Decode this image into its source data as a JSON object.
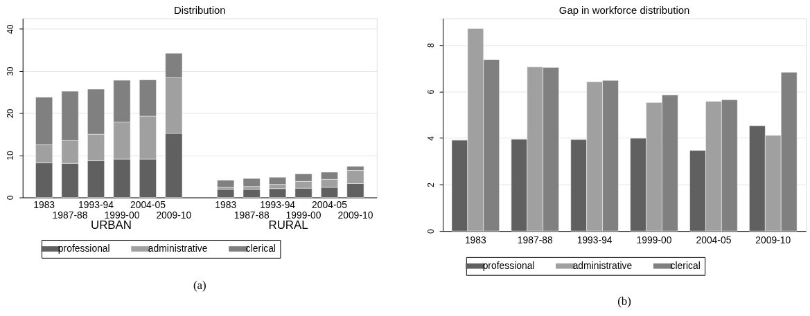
{
  "chart_data": [
    {
      "type": "bar",
      "title": "Distribution",
      "stacked": true,
      "categories": [
        "1983",
        "1987-88",
        "1993-94",
        "1999-00",
        "2004-05",
        "2009-10",
        null,
        "1983",
        "1987-88",
        "1993-94",
        "1999-00",
        "2004-05",
        "2009-10"
      ],
      "series": [
        {
          "name": "professional",
          "color": "#606060",
          "values": [
            8.2,
            8.1,
            8.7,
            9.1,
            9.1,
            15.2,
            null,
            1.9,
            1.9,
            2.1,
            2.2,
            2.4,
            3.3
          ]
        },
        {
          "name": "administrative",
          "color": "#a0a0a0",
          "values": [
            4.3,
            5.4,
            6.3,
            8.8,
            10.2,
            13.2,
            null,
            0.5,
            0.7,
            1.0,
            1.6,
            1.9,
            3.1
          ]
        },
        {
          "name": "clerical",
          "color": "#808080",
          "values": [
            11.3,
            11.7,
            10.7,
            9.9,
            8.6,
            5.8,
            null,
            1.7,
            1.9,
            1.7,
            1.8,
            1.7,
            1.0
          ]
        }
      ],
      "ylim": [
        0,
        42.5
      ],
      "yticks": [
        0,
        10,
        20,
        30,
        40
      ],
      "grid": "y",
      "legend": "bottom",
      "annotations": [
        "URBAN",
        "RURAL",
        "(a)"
      ]
    },
    {
      "type": "bar",
      "title": "Gap in workforce distribution",
      "categories": [
        "1983",
        "1987-88",
        "1993-94",
        "1999-00",
        "2004-05",
        "2009-10"
      ],
      "series": [
        {
          "name": "professional",
          "color": "#606060",
          "values": [
            3.91,
            3.95,
            3.94,
            3.99,
            3.47,
            4.53
          ]
        },
        {
          "name": "administrative",
          "color": "#a0a0a0",
          "values": [
            8.71,
            7.06,
            6.42,
            5.53,
            5.58,
            4.12
          ]
        },
        {
          "name": "clerical",
          "color": "#808080",
          "values": [
            7.37,
            7.04,
            6.48,
            5.86,
            5.65,
            6.83
          ]
        }
      ],
      "ylim": [
        0,
        9.15
      ],
      "yticks": [
        0,
        2,
        4,
        6,
        8
      ],
      "grid": "y",
      "legend": "bottom",
      "annotations": [
        "(b)"
      ]
    }
  ]
}
